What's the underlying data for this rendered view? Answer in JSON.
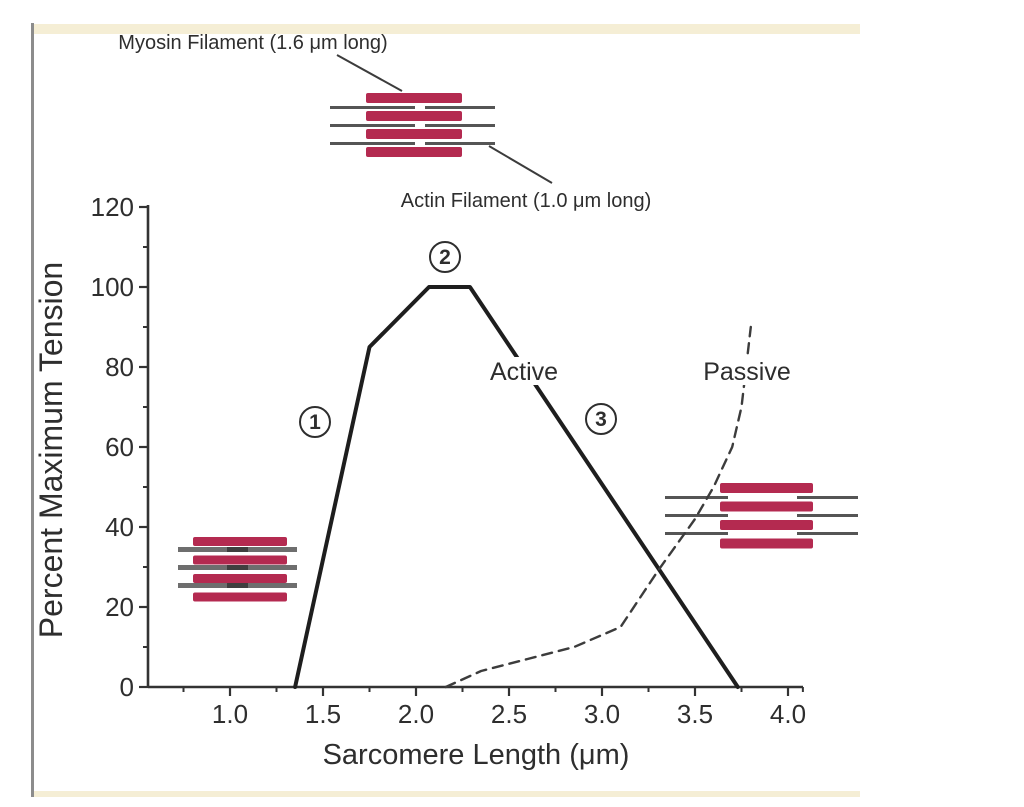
{
  "page": {
    "band_color": "#f5eed5",
    "rule_color": "#8c8c8c",
    "background": "#ffffff"
  },
  "figure": {
    "myosin_label": "Myosin Filament (1.6 μm long)",
    "actin_label": "Actin Filament (1.0 μm long)",
    "region_labels": {
      "one": "1",
      "two": "2",
      "three": "3"
    },
    "colors": {
      "myosin": "#b42a50",
      "actin": "#6e6e6e",
      "actin_thin": "#555555",
      "actin_overlap": "#3f3f3f",
      "ink": "#1e1e1e",
      "axis": "#333333",
      "dash": "#3c3c3c"
    }
  },
  "chart_data": {
    "type": "line",
    "title": "",
    "xlabel": "Sarcomere Length (μm)",
    "ylabel": "Percent Maximum Tension",
    "xlim": [
      0.55,
      4.1
    ],
    "ylim": [
      0,
      120
    ],
    "grid": false,
    "x_ticks": {
      "major": [
        1.0,
        1.5,
        2.0,
        2.5,
        3.0,
        3.5,
        4.0
      ],
      "labels": [
        "1.0",
        "1.5",
        "2.0",
        "2.5",
        "3.0",
        "3.5",
        "4.0"
      ],
      "minor": [
        0.75,
        1.25,
        1.75,
        2.25,
        2.75,
        3.25,
        3.75,
        4.08
      ]
    },
    "y_ticks": {
      "major": [
        0,
        20,
        40,
        60,
        80,
        100,
        120
      ],
      "labels": [
        "0",
        "20",
        "40",
        "60",
        "80",
        "100",
        "120"
      ],
      "minor": [
        10,
        30,
        50,
        70,
        90,
        110
      ]
    },
    "series": [
      {
        "name": "Active",
        "line": "solid",
        "x": [
          1.35,
          1.75,
          2.07,
          2.29,
          3.73
        ],
        "y": [
          0,
          85,
          100,
          100,
          0
        ]
      },
      {
        "name": "Passive",
        "line": "dashed",
        "x": [
          2.16,
          2.35,
          2.6,
          2.85,
          3.1,
          3.3,
          3.5,
          3.6,
          3.7,
          3.75,
          3.8
        ],
        "y": [
          0,
          4,
          7,
          10,
          15,
          29,
          42,
          50,
          60,
          70,
          90
        ]
      }
    ],
    "annotations": [
      {
        "label": "1",
        "x": 1.46,
        "y": 66,
        "kind": "circled-number"
      },
      {
        "label": "2",
        "x": 2.16,
        "y": 107,
        "kind": "circled-number"
      },
      {
        "label": "3",
        "x": 3.0,
        "y": 67,
        "kind": "circled-number"
      },
      {
        "label": "Active",
        "x": 2.58,
        "y": 79,
        "kind": "curve-label"
      },
      {
        "label": "Passive",
        "x": 3.78,
        "y": 79,
        "kind": "curve-label"
      }
    ]
  }
}
